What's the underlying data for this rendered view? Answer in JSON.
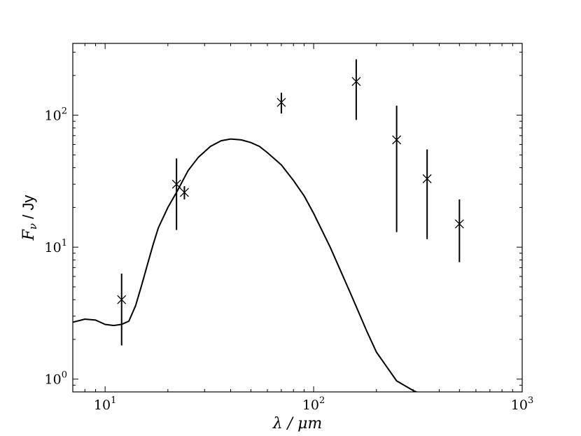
{
  "chart_data": {
    "type": "scatter",
    "xlabel": "λ / μm",
    "ylabel_math": "F",
    "ylabel_sub": "ν",
    "ylabel_unit": " / Jy",
    "xscale": "log",
    "yscale": "log",
    "xlim": [
      7,
      1000
    ],
    "ylim": [
      0.8,
      350
    ],
    "x_ticks": [
      {
        "value": 10,
        "base": "10",
        "exp": "1"
      },
      {
        "value": 100,
        "base": "10",
        "exp": "2"
      },
      {
        "value": 1000,
        "base": "10",
        "exp": "3"
      }
    ],
    "y_ticks": [
      {
        "value": 1,
        "base": "10",
        "exp": "0"
      },
      {
        "value": 10,
        "base": "10",
        "exp": "1"
      },
      {
        "value": 100,
        "base": "10",
        "exp": "2"
      }
    ],
    "grid": false,
    "colors": {
      "line": "#000000",
      "markers": "#000000"
    },
    "series": [
      {
        "kind": "observed",
        "marker": "x",
        "x": [
          12,
          22,
          24,
          70,
          160,
          250,
          350,
          500
        ],
        "y": [
          4.0,
          30,
          26,
          125,
          180,
          65,
          33,
          15
        ],
        "y_low": [
          1.8,
          13.5,
          23,
          103,
          92,
          13,
          11.5,
          7.7
        ],
        "y_high": [
          6.3,
          47,
          29,
          148,
          265,
          118,
          55,
          23
        ]
      },
      {
        "kind": "model",
        "x": [
          7,
          8,
          9,
          10,
          11,
          12,
          13,
          14,
          15,
          16,
          17,
          18,
          20,
          22,
          25,
          28,
          32,
          36,
          40,
          45,
          50,
          55,
          60,
          70,
          80,
          90,
          100,
          120,
          150,
          180,
          200,
          250,
          300,
          316
        ],
        "y": [
          2.7,
          2.85,
          2.8,
          2.6,
          2.55,
          2.6,
          2.75,
          3.6,
          5.2,
          7.5,
          10.5,
          14,
          20,
          26,
          38,
          48,
          58,
          64,
          66,
          65,
          62,
          58,
          52,
          42,
          32,
          24.5,
          18,
          10,
          4.5,
          2.3,
          1.6,
          0.97,
          0.82,
          0.79
        ]
      }
    ]
  }
}
